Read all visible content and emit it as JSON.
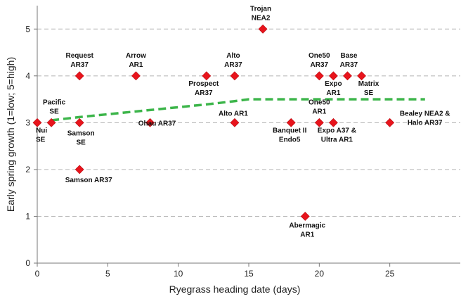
{
  "chart_data": {
    "type": "scatter",
    "xlabel": "Ryegrass heading date (days)",
    "ylabel": "Early spring growth (1=low; 5=high)",
    "xlim": [
      0,
      30
    ],
    "ylim": [
      0,
      5.5
    ],
    "xticks": [
      0,
      5,
      10,
      15,
      20,
      25
    ],
    "yticks": [
      0,
      1,
      2,
      3,
      4,
      5
    ],
    "grid": "horizontal dashed",
    "marker_color": "#e8141c",
    "trend_color": "#3cb54a",
    "points": [
      {
        "x": 0,
        "y": 3,
        "label": [
          "Nui",
          "SE"
        ]
      },
      {
        "x": 1,
        "y": 3,
        "label": [
          "Pacific",
          "SE"
        ]
      },
      {
        "x": 3,
        "y": 4,
        "label": [
          "Request",
          "AR37"
        ]
      },
      {
        "x": 3,
        "y": 3,
        "label": [
          "Samson",
          "SE"
        ]
      },
      {
        "x": 3,
        "y": 2,
        "label": [
          "Samson AR37"
        ]
      },
      {
        "x": 7,
        "y": 4,
        "label": [
          "Arrow",
          "AR1"
        ]
      },
      {
        "x": 8,
        "y": 3,
        "label": [
          "Ohau AR37"
        ]
      },
      {
        "x": 12,
        "y": 4,
        "label": [
          "Prospect",
          "AR37"
        ]
      },
      {
        "x": 14,
        "y": 4,
        "label": [
          "Alto",
          "AR37"
        ]
      },
      {
        "x": 14,
        "y": 3,
        "label": [
          "Alto AR1"
        ]
      },
      {
        "x": 16,
        "y": 5,
        "label": [
          "Trojan",
          "NEA2"
        ]
      },
      {
        "x": 18,
        "y": 3,
        "label": [
          "Banquet II",
          "Endo5"
        ]
      },
      {
        "x": 19,
        "y": 1,
        "label": [
          "Abermagic",
          "AR1"
        ]
      },
      {
        "x": 20,
        "y": 4,
        "label": [
          "One50",
          "AR37"
        ]
      },
      {
        "x": 20,
        "y": 3,
        "label": [
          "One50",
          "AR1"
        ]
      },
      {
        "x": 21,
        "y": 4,
        "label": [
          "Expo",
          "AR1"
        ]
      },
      {
        "x": 21,
        "y": 3,
        "label": [
          "Expo A37 &",
          "Ultra AR1"
        ]
      },
      {
        "x": 22,
        "y": 4,
        "label": [
          "Base",
          "AR37"
        ]
      },
      {
        "x": 23,
        "y": 4,
        "label": [
          "Matrix",
          "SE"
        ]
      },
      {
        "x": 25,
        "y": 3,
        "label": [
          "Bealey NEA2 &",
          "Halo AR37"
        ]
      }
    ],
    "trend": {
      "x": [
        1,
        3,
        5,
        8,
        10,
        12,
        14,
        15,
        17,
        20,
        23,
        25,
        27.5
      ],
      "y": [
        3.05,
        3.12,
        3.18,
        3.27,
        3.33,
        3.39,
        3.46,
        3.5,
        3.5,
        3.5,
        3.5,
        3.5,
        3.5
      ]
    }
  }
}
